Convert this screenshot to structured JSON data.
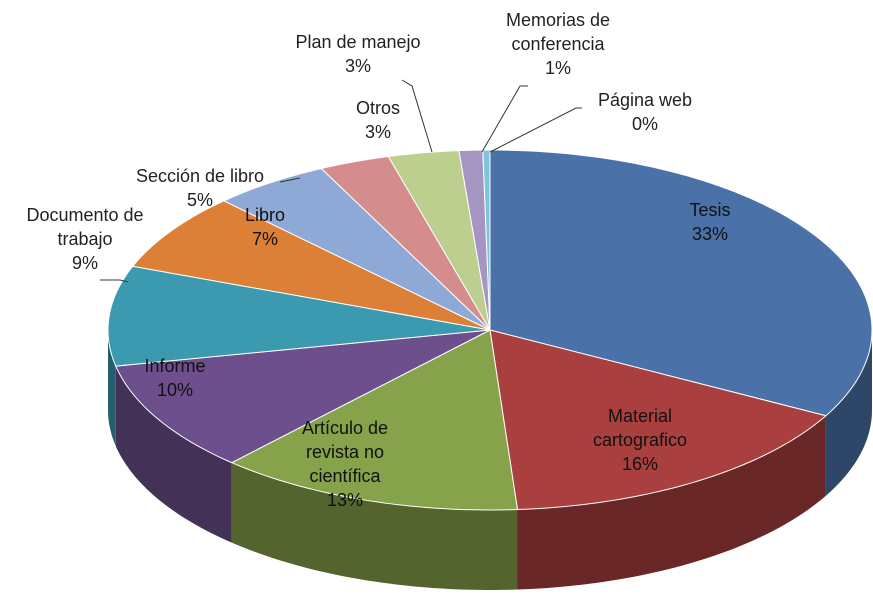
{
  "chart_data": {
    "type": "pie3d",
    "categories": [
      "Tesis",
      "Material cartografico",
      "Artículo de revista no científica",
      "Informe",
      "Documento de trabajo",
      "Libro",
      "Sección de libro",
      "Otros",
      "Plan de manejo",
      "Memorias de conferencia",
      "Página web"
    ],
    "values": [
      33,
      16,
      13,
      10,
      9,
      7,
      5,
      3,
      3,
      1,
      0.3
    ],
    "value_labels": [
      "33%",
      "16%",
      "13%",
      "10%",
      "9%",
      "7%",
      "5%",
      "3%",
      "3%",
      "1%",
      "0%"
    ],
    "colors": [
      "#4a72a8",
      "#a9403f",
      "#86a24a",
      "#6c4f8c",
      "#3c9ab0",
      "#dc7f37",
      "#8fa9d6",
      "#d48c8c",
      "#bccf8f",
      "#a595c3",
      "#7fc4d8"
    ]
  }
}
